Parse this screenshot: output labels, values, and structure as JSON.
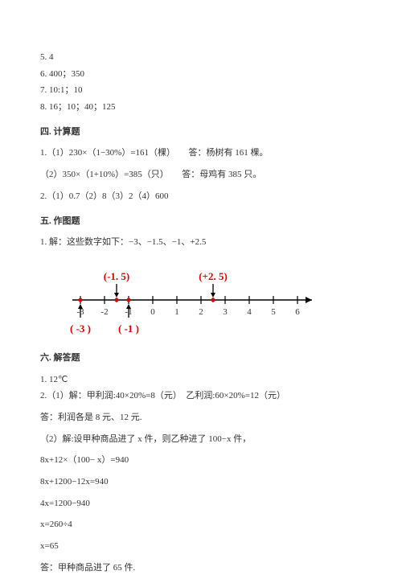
{
  "answers_block": {
    "l1": "5. 4",
    "l2": "6. 400；350",
    "l3": "7. 10:1；10",
    "l4": "8. 16；10；40；125"
  },
  "sec4": {
    "title": "四. 计算题",
    "p1": "1.（1）230×（1−30%）=161（棵）　　答：杨树有 161 棵。",
    "p2": "（2）350×（1+10%）=385（只）　　答：母鸡有 385 只。",
    "p3": "2.（1）0.7（2）8（3）2（4）600"
  },
  "sec5": {
    "title": "五. 作图题",
    "p1": "1. 解：这些数字如下：−3、−1.5、−1、+2.5"
  },
  "diagram": {
    "ticks": [
      -3,
      -2,
      -1,
      0,
      1,
      2,
      3,
      4,
      5,
      6
    ],
    "top_labels": [
      {
        "x": -1.5,
        "text": "(-1. 5)",
        "color": "#d00"
      },
      {
        "x": 2.5,
        "text": "(+2. 5)",
        "color": "#d00"
      }
    ],
    "bottom_labels": [
      {
        "x": -3,
        "text": "( -3 )",
        "color": "#d00"
      },
      {
        "x": -1,
        "text": "( -1 )",
        "color": "#d00"
      }
    ],
    "points_top": [
      -1.5,
      2.5
    ],
    "points_bottom": [
      -3,
      -1
    ],
    "axis_color": "#000",
    "point_color": "#d00",
    "tick_label_color": "#333"
  },
  "sec6": {
    "title": "六. 解答题",
    "p1": "1. 12℃",
    "p2": "2.（1）解：甲利润:40×20%=8（元）　乙利润:60×20%=12（元）",
    "p3": "答：利润各是 8 元、12 元.",
    "p4": "（2）解:设甲种商品进了 x 件，则乙种进了 100−x 件，",
    "p5": "8x+12×（100− x）=940",
    "p6": "8x+1200−12x=940",
    "p7": "4x=1200−940",
    "p8": "x=260÷4",
    "p9": "x=65",
    "p10": "答：甲种商品进了 65 件."
  }
}
